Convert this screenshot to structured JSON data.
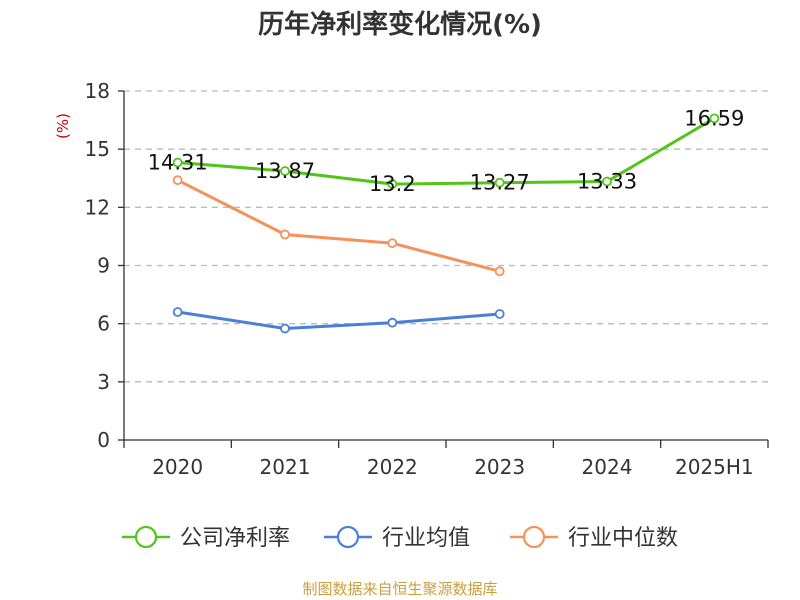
{
  "chart_data": {
    "type": "line",
    "title": "历年净利率变化情况(%)",
    "ylabel": "(%)",
    "categories": [
      "2020",
      "2021",
      "2022",
      "2023",
      "2024",
      "2025H1"
    ],
    "yticks": [
      0,
      3,
      6,
      9,
      12,
      15,
      18
    ],
    "ylim": [
      0,
      18
    ],
    "grid": true,
    "legend_position": "bottom",
    "series": [
      {
        "name": "公司净利率",
        "color": "#52c41a",
        "values": [
          14.31,
          13.87,
          13.2,
          13.27,
          13.33,
          16.59
        ],
        "labels": [
          "14.31",
          "13.87",
          "13.2",
          "13.27",
          "13.33",
          "16.59"
        ]
      },
      {
        "name": "行业均值",
        "color": "#4a7fd8",
        "values": [
          6.6,
          5.75,
          6.05,
          6.5,
          null,
          null
        ]
      },
      {
        "name": "行业中位数",
        "color": "#f5915a",
        "values": [
          13.4,
          10.6,
          10.15,
          8.7,
          null,
          null
        ]
      }
    ],
    "source": "制图数据来自恒生聚源数据库"
  }
}
